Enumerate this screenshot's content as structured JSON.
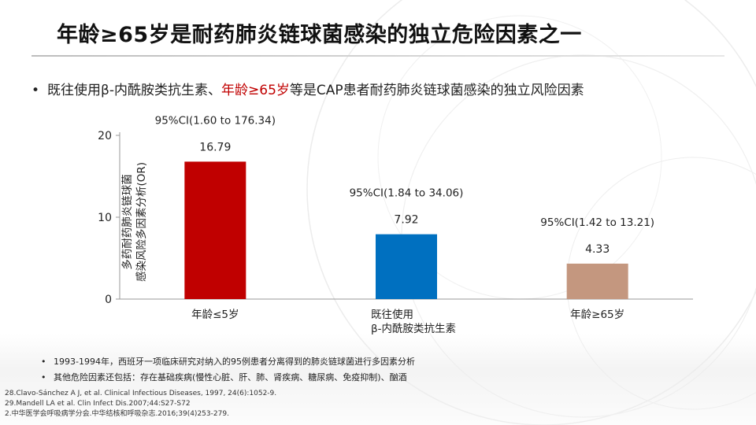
{
  "title": "年龄≥65岁是耐药肺炎链球菌感染的独立危险因素之一",
  "bullet": {
    "prefix": "既往使用β-内酰胺类抗生素、",
    "highlight": "年龄≥65岁",
    "suffix": "等是CAP患者耐药肺炎链球菌感染的独立风险因素",
    "highlight_color": "#c00000"
  },
  "chart_data": {
    "type": "bar",
    "ylabel_lines": [
      "多药耐药肺炎链球菌",
      "感染风险多因素分析(OR)"
    ],
    "ylim": [
      0,
      20
    ],
    "yticks": [
      0,
      10,
      20
    ],
    "grid": false,
    "categories": [
      "年龄≤5岁",
      "既往使用\nβ-内酰胺类抗生素",
      "年龄≥65岁"
    ],
    "values": [
      16.79,
      7.92,
      4.33
    ],
    "value_labels": [
      "16.79",
      "7.92",
      "4.33"
    ],
    "ci_labels": [
      "95%CI(1.60 to 176.34)",
      "95%CI(1.84 to 34.06)",
      "95%CI(1.42 to 13.21)"
    ],
    "colors": [
      "#c00000",
      "#0070c0",
      "#c4977f"
    ]
  },
  "notes": [
    "1993-1994年，西班牙一项临床研究对纳入的95例患者分离得到的肺炎链球菌进行多因素分析",
    "其他危险因素还包括：存在基础疾病(慢性心脏、肝、肺、肾疾病、糖尿病、免疫抑制)、酗酒"
  ],
  "references": [
    "28.Clavo-Sánchez A J, et al. Clinical Infectious Diseases, 1997, 24(6):1052-9.",
    "29.Mandell LA et al. Clin Infect Dis.2007;44:S27-S72",
    "2.中华医学会呼吸病学分会.中华结核和呼吸杂志.2016;39(4)253-279."
  ]
}
